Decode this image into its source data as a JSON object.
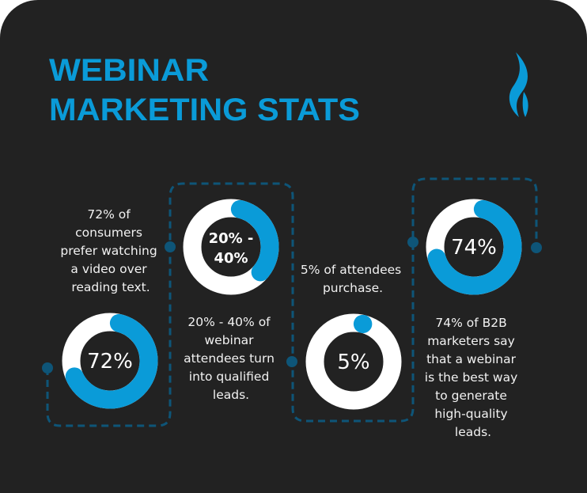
{
  "title": {
    "line1": "WEBINAR",
    "line2": "MARKETING STATS"
  },
  "logo": {
    "icon": "flame-icon"
  },
  "colors": {
    "background": "#222222",
    "accent": "#0a9bd8",
    "ring_track": "#ffffff",
    "connector": "#0e5578"
  },
  "stats": [
    {
      "value": 0.72,
      "label_lines": [
        "72%"
      ],
      "description": [
        "72% of",
        "consumers",
        "prefer watching",
        "a video over",
        "reading text."
      ]
    },
    {
      "value": 0.4,
      "label_lines": [
        "20% -",
        "40%"
      ],
      "description": [
        "20% - 40% of",
        "webinar",
        "attendees turn",
        "into qualified",
        "leads."
      ]
    },
    {
      "value": 0.05,
      "label_lines": [
        "5%"
      ],
      "description": [
        "5% of attendees",
        "purchase."
      ]
    },
    {
      "value": 0.74,
      "label_lines": [
        "74%"
      ],
      "description": [
        "74% of B2B",
        "marketers say",
        "that a webinar",
        "is the best way",
        "to generate",
        "high-quality",
        "leads."
      ]
    }
  ]
}
